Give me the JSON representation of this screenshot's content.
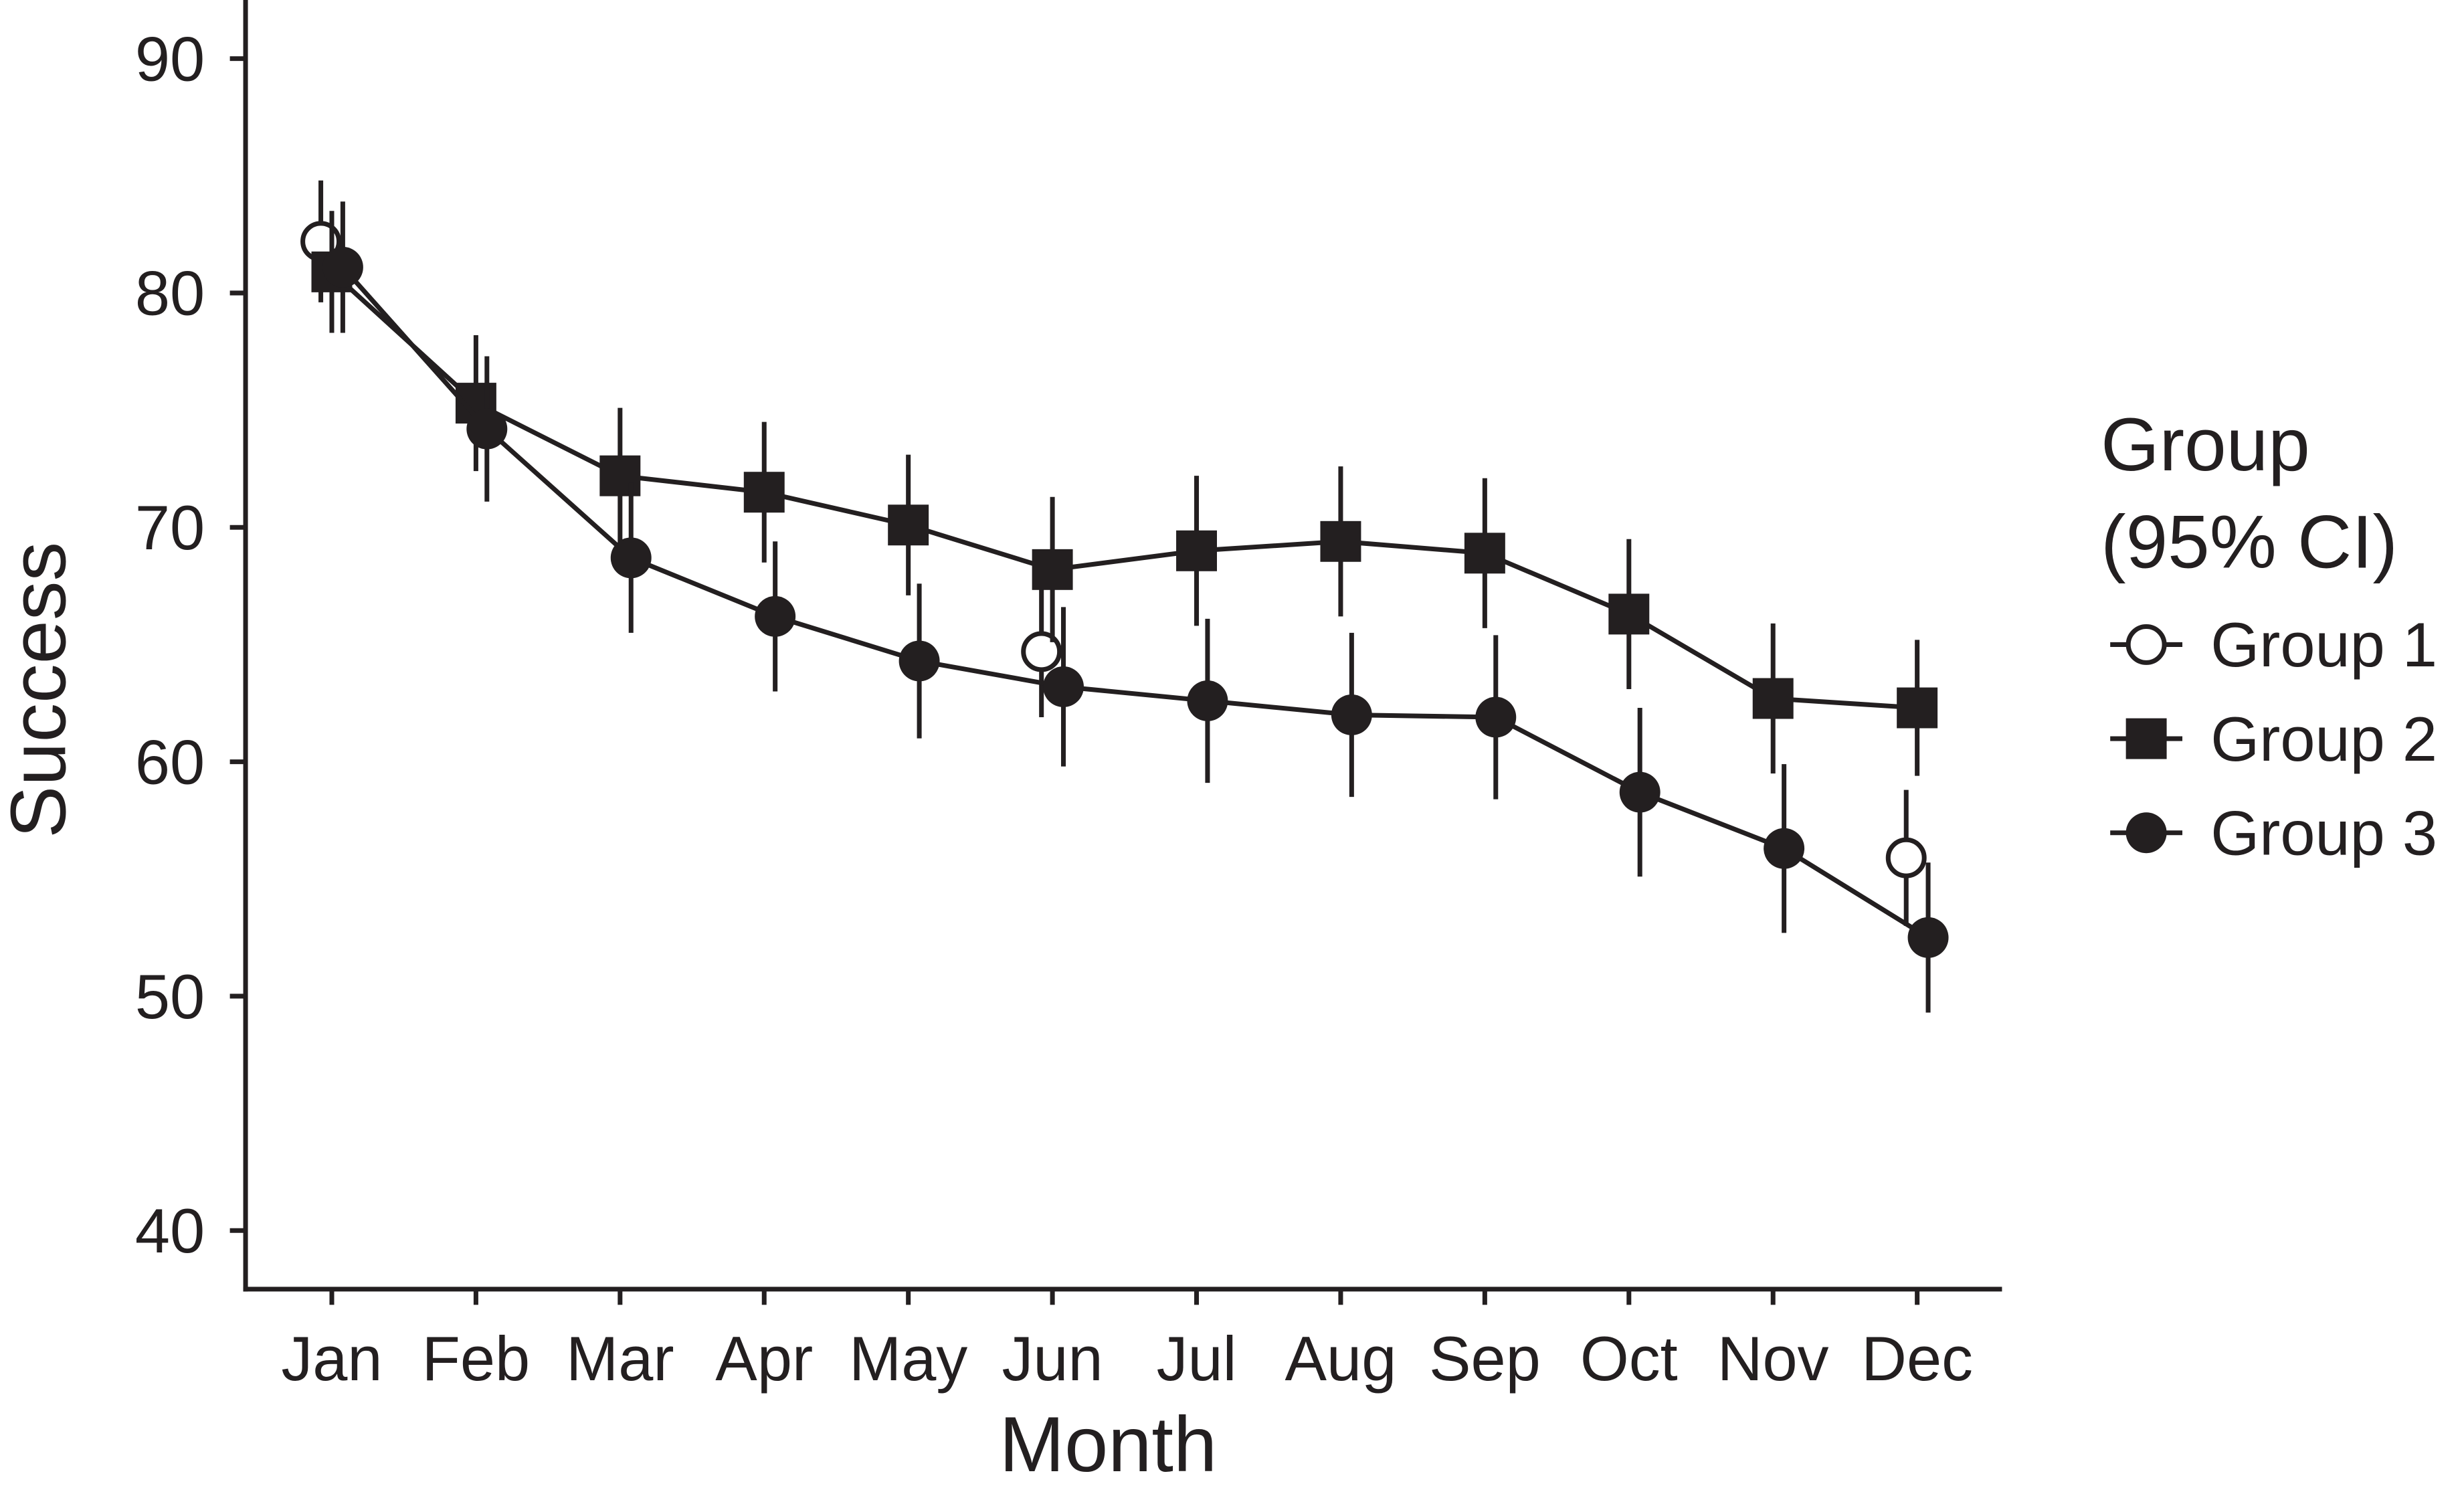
{
  "chart_data": {
    "type": "line",
    "x_label": "Month",
    "y_label": "Success",
    "categories": [
      "Jan",
      "Feb",
      "Mar",
      "Apr",
      "May",
      "Jun",
      "Jul",
      "Aug",
      "Sep",
      "Oct",
      "Nov",
      "Dec"
    ],
    "ylim": [
      37.5,
      92.5
    ],
    "yticks": [
      40,
      50,
      60,
      70,
      80,
      90
    ],
    "legend_title": [
      "Group",
      "(95% CI)"
    ],
    "legend_position": "right",
    "series": [
      {
        "name": "Group 1",
        "color": "#231f20",
        "marker": "open-circle",
        "values": [
          82.2,
          null,
          null,
          null,
          null,
          64.7,
          null,
          null,
          null,
          null,
          null,
          55.9
        ],
        "errors": [
          2.6,
          null,
          null,
          null,
          null,
          2.8,
          null,
          null,
          null,
          null,
          null,
          2.9
        ]
      },
      {
        "name": "Group 2",
        "color": "#231f20",
        "marker": "square",
        "values": [
          80.9,
          75.3,
          72.2,
          71.5,
          70.1,
          68.2,
          69.0,
          69.4,
          68.9,
          66.3,
          62.7,
          62.3
        ],
        "errors": [
          2.6,
          2.9,
          2.9,
          3.0,
          3.0,
          3.1,
          3.2,
          3.2,
          3.2,
          3.2,
          3.2,
          2.9
        ]
      },
      {
        "name": "Group 3",
        "color": "#231f20",
        "marker": "circle",
        "values": [
          81.1,
          74.2,
          68.7,
          66.2,
          64.3,
          63.2,
          62.6,
          62.0,
          61.9,
          58.7,
          56.3,
          52.5
        ],
        "errors": [
          2.8,
          3.1,
          3.2,
          3.2,
          3.3,
          3.4,
          3.5,
          3.5,
          3.5,
          3.6,
          3.6,
          3.2
        ]
      }
    ]
  }
}
